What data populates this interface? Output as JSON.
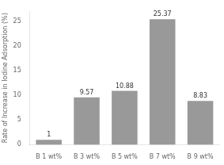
{
  "chart_data": {
    "type": "bar",
    "categories": [
      "B 1 wt%",
      "B 3 wt%",
      "B 5 wt%",
      "B 7 wt%",
      "B 9 wt%"
    ],
    "values": [
      1,
      9.57,
      10.88,
      25.37,
      8.83
    ],
    "color": "#999999",
    "ylabel": "Rate of Increase in Iodine Adsorption (%)",
    "ylim": [
      0,
      27
    ],
    "yticks": [
      0,
      5,
      10,
      15,
      20,
      25
    ],
    "grid": false,
    "data_labels": true
  }
}
